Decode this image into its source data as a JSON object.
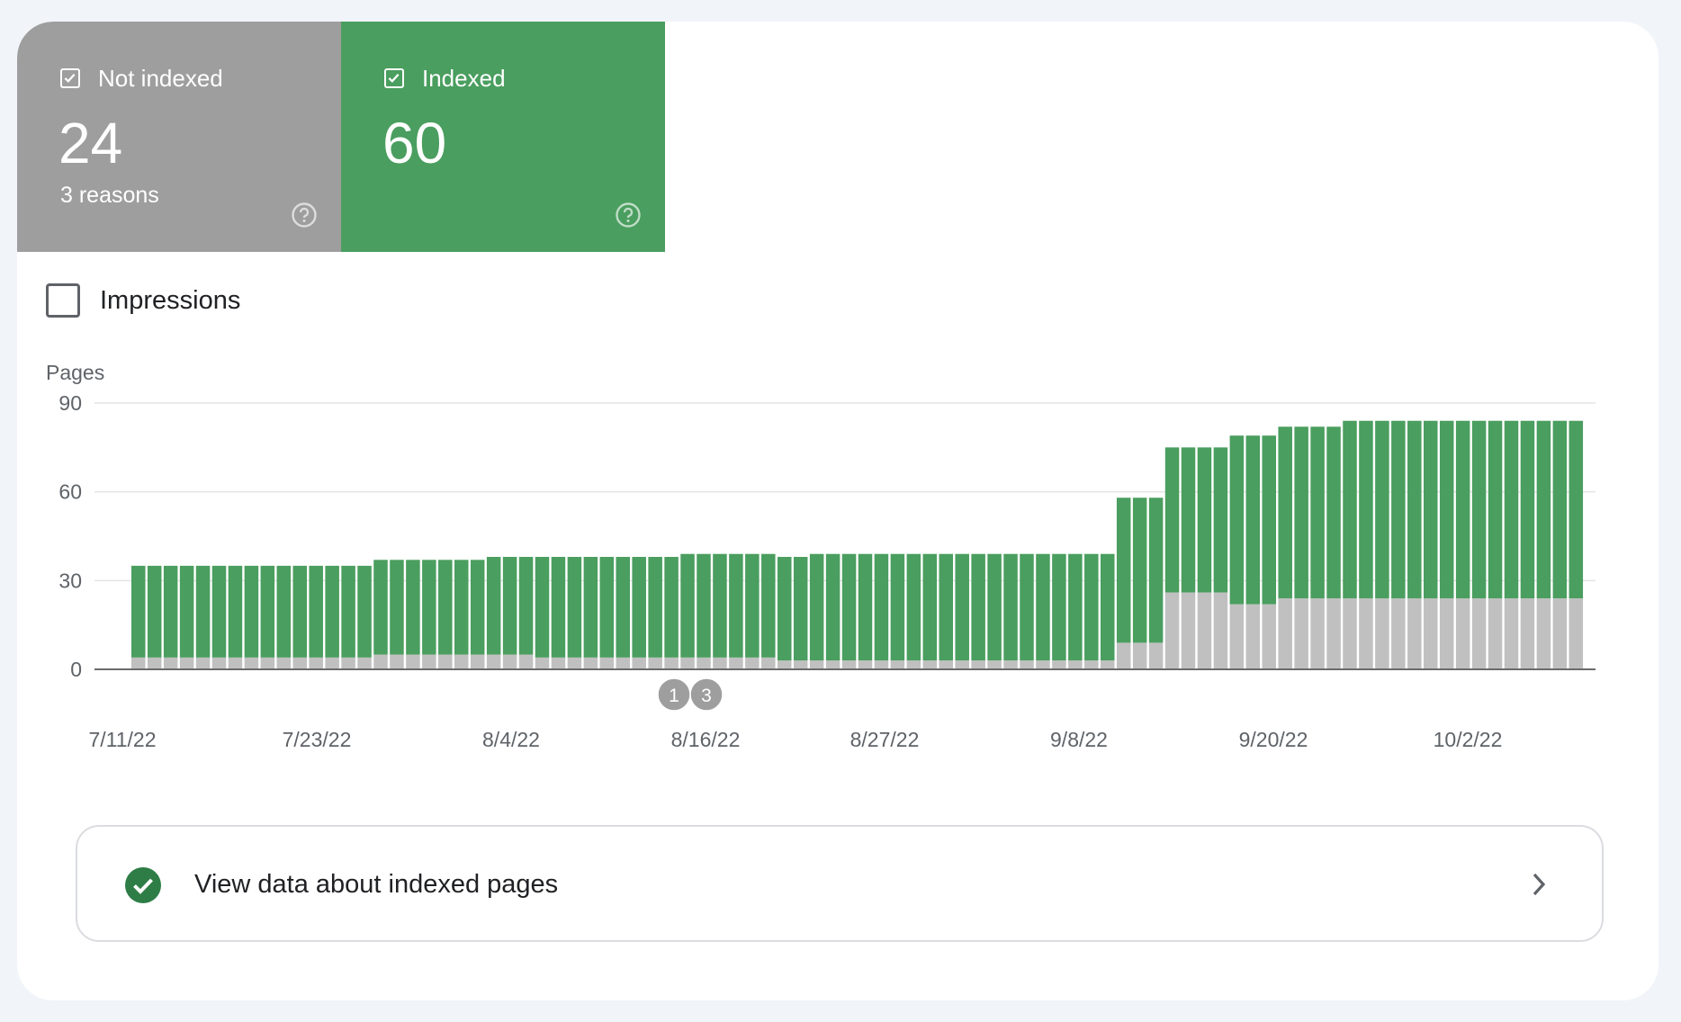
{
  "tiles": {
    "not_indexed": {
      "label": "Not indexed",
      "value": "24",
      "sub": "3 reasons",
      "color": "#9e9e9e"
    },
    "indexed": {
      "label": "Indexed",
      "value": "60",
      "color": "#4a9e5f"
    }
  },
  "impressions": {
    "label": "Impressions",
    "checked": false
  },
  "link": {
    "label": "View data about indexed pages"
  },
  "chart_data": {
    "type": "bar",
    "stacked": true,
    "ylabel": "Pages",
    "ylim": [
      0,
      90
    ],
    "yticks": [
      "0",
      "30",
      "60",
      "90"
    ],
    "x_tick_labels": [
      "7/11/22",
      "7/23/22",
      "8/4/22",
      "8/16/22",
      "8/27/22",
      "9/8/22",
      "9/20/22",
      "10/2/22"
    ],
    "annotations": [
      "1",
      "3"
    ],
    "colors": {
      "indexed": "#4a9e5f",
      "not_indexed": "#c0c0c0"
    },
    "grid": true,
    "legend": "none",
    "series": [
      {
        "values": [
          4,
          4,
          4,
          4,
          4,
          4,
          4,
          4,
          4,
          4,
          4,
          4,
          4,
          4,
          4,
          5,
          5,
          5,
          5,
          5,
          5,
          5,
          5,
          5,
          5,
          4,
          4,
          4,
          4,
          4,
          4,
          4,
          4,
          4,
          4,
          4,
          4,
          4,
          4,
          4,
          3,
          3,
          3,
          3,
          3,
          3,
          3,
          3,
          3,
          3,
          3,
          3,
          3,
          3,
          3,
          3,
          3,
          3,
          3,
          3,
          3,
          9,
          9,
          9,
          26,
          26,
          26,
          26,
          22,
          22,
          22,
          24,
          24,
          24,
          24,
          24,
          24,
          24,
          24,
          24,
          24,
          24,
          24,
          24,
          24,
          24,
          24,
          24,
          24,
          24
        ]
      },
      {
        "values": [
          31,
          31,
          31,
          31,
          31,
          31,
          31,
          31,
          31,
          31,
          31,
          31,
          31,
          31,
          31,
          32,
          32,
          32,
          32,
          32,
          32,
          32,
          33,
          33,
          33,
          34,
          34,
          34,
          34,
          34,
          34,
          34,
          34,
          34,
          35,
          35,
          35,
          35,
          35,
          35,
          35,
          35,
          36,
          36,
          36,
          36,
          36,
          36,
          36,
          36,
          36,
          36,
          36,
          36,
          36,
          36,
          36,
          36,
          36,
          36,
          36,
          49,
          49,
          49,
          49,
          49,
          49,
          49,
          57,
          57,
          57,
          58,
          58,
          58,
          58,
          60,
          60,
          60,
          60,
          60,
          60,
          60,
          60,
          60,
          60,
          60,
          60,
          60,
          60,
          60
        ]
      }
    ]
  }
}
